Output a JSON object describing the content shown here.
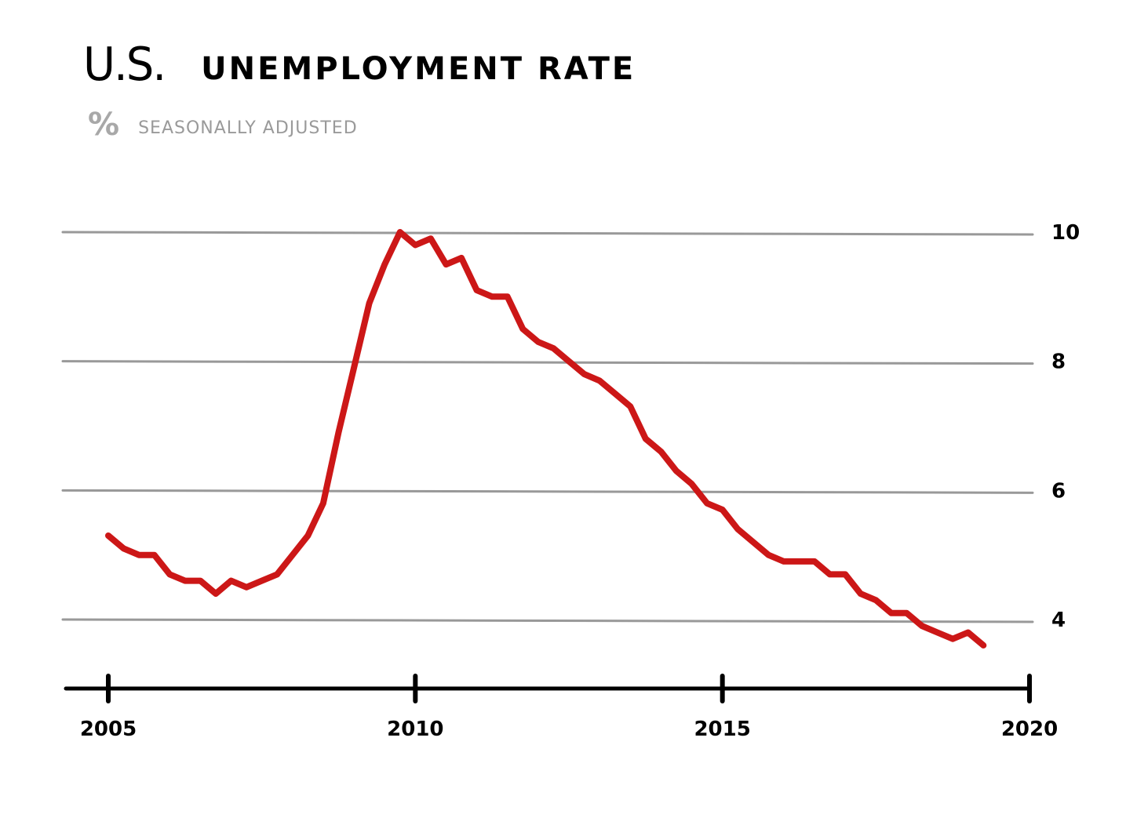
{
  "header": {
    "title_us": "U.S.",
    "title_rest": "UNEMPLOYMENT RATE",
    "unit_symbol": "%",
    "subtitle": "SEASONALLY ADJUSTED"
  },
  "colors": {
    "line": "#cc1717",
    "grid": "#999999",
    "axis": "#000000",
    "subtitle": "#9a9a9a"
  },
  "chart_data": {
    "type": "line",
    "title": "U.S. UNEMPLOYMENT RATE",
    "subtitle": "% SEASONALLY ADJUSTED",
    "xlabel": "",
    "ylabel": "",
    "xlim": [
      2005,
      2020
    ],
    "ylim": [
      4,
      10
    ],
    "x_ticks": [
      "2005",
      "2010",
      "2015",
      "2020"
    ],
    "y_ticks": [
      "10",
      "8",
      "6",
      "4"
    ],
    "grid": true,
    "y_axis_side": "right",
    "series": [
      {
        "color": "#cc1717",
        "points": [
          [
            2005.0,
            5.3
          ],
          [
            2005.25,
            5.1
          ],
          [
            2005.5,
            5.0
          ],
          [
            2005.75,
            5.0
          ],
          [
            2006.0,
            4.7
          ],
          [
            2006.25,
            4.6
          ],
          [
            2006.5,
            4.6
          ],
          [
            2006.75,
            4.4
          ],
          [
            2007.0,
            4.6
          ],
          [
            2007.25,
            4.5
          ],
          [
            2007.5,
            4.6
          ],
          [
            2007.75,
            4.7
          ],
          [
            2008.0,
            5.0
          ],
          [
            2008.25,
            5.3
          ],
          [
            2008.5,
            5.8
          ],
          [
            2008.75,
            6.9
          ],
          [
            2009.0,
            7.9
          ],
          [
            2009.25,
            8.9
          ],
          [
            2009.5,
            9.5
          ],
          [
            2009.75,
            10.0
          ],
          [
            2010.0,
            9.8
          ],
          [
            2010.25,
            9.9
          ],
          [
            2010.5,
            9.5
          ],
          [
            2010.75,
            9.6
          ],
          [
            2011.0,
            9.1
          ],
          [
            2011.25,
            9.0
          ],
          [
            2011.5,
            9.0
          ],
          [
            2011.75,
            8.5
          ],
          [
            2012.0,
            8.3
          ],
          [
            2012.25,
            8.2
          ],
          [
            2012.5,
            8.0
          ],
          [
            2012.75,
            7.8
          ],
          [
            2013.0,
            7.7
          ],
          [
            2013.25,
            7.5
          ],
          [
            2013.5,
            7.3
          ],
          [
            2013.75,
            6.8
          ],
          [
            2014.0,
            6.6
          ],
          [
            2014.25,
            6.3
          ],
          [
            2014.5,
            6.1
          ],
          [
            2014.75,
            5.8
          ],
          [
            2015.0,
            5.7
          ],
          [
            2015.25,
            5.4
          ],
          [
            2015.5,
            5.2
          ],
          [
            2015.75,
            5.0
          ],
          [
            2016.0,
            4.9
          ],
          [
            2016.25,
            4.9
          ],
          [
            2016.5,
            4.9
          ],
          [
            2016.75,
            4.7
          ],
          [
            2017.0,
            4.7
          ],
          [
            2017.25,
            4.4
          ],
          [
            2017.5,
            4.3
          ],
          [
            2017.75,
            4.1
          ],
          [
            2018.0,
            4.1
          ],
          [
            2018.25,
            3.9
          ],
          [
            2018.5,
            3.8
          ],
          [
            2018.75,
            3.7
          ],
          [
            2019.0,
            3.8
          ],
          [
            2019.25,
            3.6
          ]
        ]
      }
    ]
  }
}
